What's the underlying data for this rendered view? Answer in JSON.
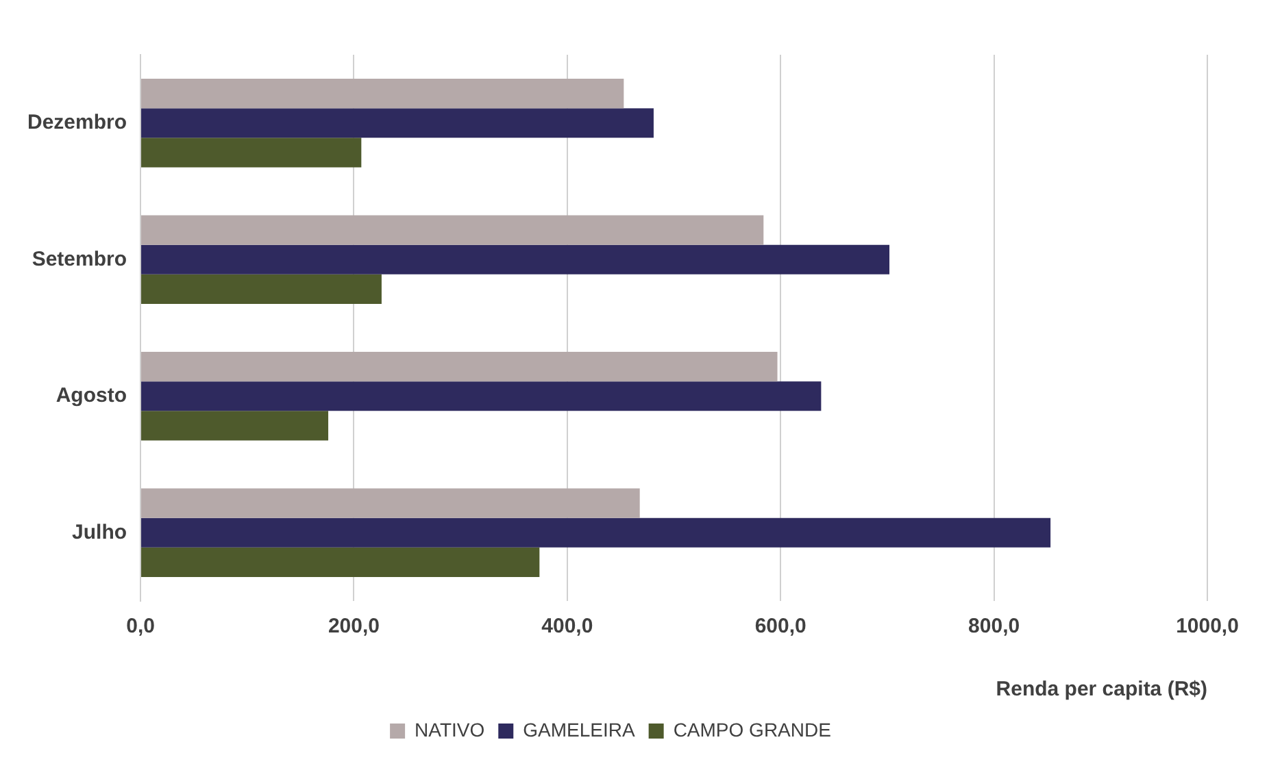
{
  "chart_data": {
    "type": "bar",
    "orientation": "horizontal",
    "xlabel": "Renda per capita (R$)",
    "categories": [
      "Dezembro",
      "Setembro",
      "Agosto",
      "Julho"
    ],
    "series": [
      {
        "name": "NATIVO",
        "color": "#b5a9a9",
        "values": [
          453,
          584,
          597,
          468
        ]
      },
      {
        "name": "GAMELEIRA",
        "color": "#2e2a5e",
        "values": [
          481,
          702,
          638,
          853
        ]
      },
      {
        "name": "CAMPO GRANDE",
        "color": "#4e5a2c",
        "values": [
          207,
          226,
          176,
          374
        ]
      }
    ],
    "xlim": [
      0,
      1000
    ],
    "xticks": [
      {
        "value": 0,
        "label": "0,0"
      },
      {
        "value": 200,
        "label": "200,0"
      },
      {
        "value": 400,
        "label": "400,0"
      },
      {
        "value": 600,
        "label": "600,0"
      },
      {
        "value": 800,
        "label": "800,0"
      },
      {
        "value": 1000,
        "label": "1000,0"
      }
    ],
    "grid": "x",
    "legend": "bottom"
  }
}
